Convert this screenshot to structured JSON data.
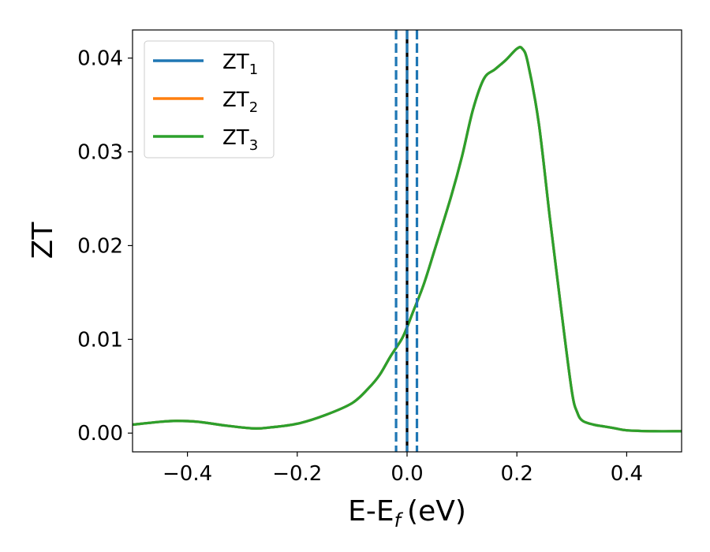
{
  "chart_data": {
    "type": "line",
    "xlabel": "E-E",
    "xlabel_sub": "f",
    "xlabel_unit": "(eV)",
    "ylabel": "ZT",
    "xlim": [
      -0.5,
      0.5
    ],
    "ylim": [
      -0.002,
      0.043
    ],
    "grid": false,
    "legend_position": "top-left",
    "xticks": [
      {
        "value": -0.4,
        "label": "−0.4"
      },
      {
        "value": -0.2,
        "label": "−0.2"
      },
      {
        "value": 0.0,
        "label": "0.0"
      },
      {
        "value": 0.2,
        "label": "0.2"
      },
      {
        "value": 0.4,
        "label": "0.4"
      }
    ],
    "yticks": [
      {
        "value": 0.0,
        "label": "0.00"
      },
      {
        "value": 0.01,
        "label": "0.01"
      },
      {
        "value": 0.02,
        "label": "0.02"
      },
      {
        "value": 0.03,
        "label": "0.03"
      },
      {
        "value": 0.04,
        "label": "0.04"
      }
    ],
    "x": [
      -0.5,
      -0.45,
      -0.42,
      -0.38,
      -0.33,
      -0.28,
      -0.25,
      -0.2,
      -0.15,
      -0.1,
      -0.07,
      -0.05,
      -0.03,
      -0.01,
      0.0,
      0.01,
      0.03,
      0.05,
      0.08,
      0.1,
      0.12,
      0.14,
      0.16,
      0.18,
      0.2,
      0.21,
      0.22,
      0.24,
      0.26,
      0.28,
      0.3,
      0.31,
      0.32,
      0.34,
      0.36,
      0.38,
      0.4,
      0.45,
      0.5
    ],
    "series": [
      {
        "name": "ZT",
        "sub": "1",
        "color": "#1f77b4",
        "values": [
          0.0009,
          0.0012,
          0.0013,
          0.0012,
          0.0008,
          0.0005,
          0.0006,
          0.001,
          0.0019,
          0.0032,
          0.0048,
          0.0062,
          0.0082,
          0.01,
          0.0113,
          0.0128,
          0.0158,
          0.0195,
          0.0252,
          0.0295,
          0.0345,
          0.0378,
          0.0388,
          0.0398,
          0.041,
          0.041,
          0.0395,
          0.033,
          0.023,
          0.0135,
          0.0045,
          0.0022,
          0.0013,
          0.0009,
          0.0007,
          0.0005,
          0.0003,
          0.0002,
          0.0002
        ]
      },
      {
        "name": "ZT",
        "sub": "2",
        "color": "#ff7f0e",
        "values": [
          0.0009,
          0.0012,
          0.0013,
          0.0012,
          0.0008,
          0.0005,
          0.0006,
          0.001,
          0.0019,
          0.0032,
          0.0048,
          0.0062,
          0.0082,
          0.01,
          0.0113,
          0.0128,
          0.0158,
          0.0195,
          0.0252,
          0.0295,
          0.0345,
          0.0378,
          0.0388,
          0.0398,
          0.041,
          0.041,
          0.0395,
          0.033,
          0.023,
          0.0135,
          0.0045,
          0.0022,
          0.0013,
          0.0009,
          0.0007,
          0.0005,
          0.0003,
          0.0002,
          0.0002
        ]
      },
      {
        "name": "ZT",
        "sub": "3",
        "color": "#2ca02c",
        "values": [
          0.0009,
          0.0012,
          0.0013,
          0.0012,
          0.0008,
          0.0005,
          0.0006,
          0.001,
          0.0019,
          0.0032,
          0.0048,
          0.0062,
          0.0082,
          0.01,
          0.0113,
          0.0128,
          0.0158,
          0.0195,
          0.0252,
          0.0295,
          0.0345,
          0.0378,
          0.0388,
          0.0398,
          0.041,
          0.041,
          0.0395,
          0.033,
          0.023,
          0.0135,
          0.0045,
          0.0022,
          0.0013,
          0.0009,
          0.0007,
          0.0005,
          0.0003,
          0.0002,
          0.0002
        ]
      }
    ],
    "vlines": [
      {
        "x": 0.0,
        "color": "#000000",
        "style": "solid"
      },
      {
        "x": -0.02,
        "color": "#1f77b4",
        "style": "dashed"
      },
      {
        "x": 0.0,
        "color": "#1f77b4",
        "style": "dashed"
      },
      {
        "x": 0.018,
        "color": "#1f77b4",
        "style": "dashed"
      }
    ]
  }
}
